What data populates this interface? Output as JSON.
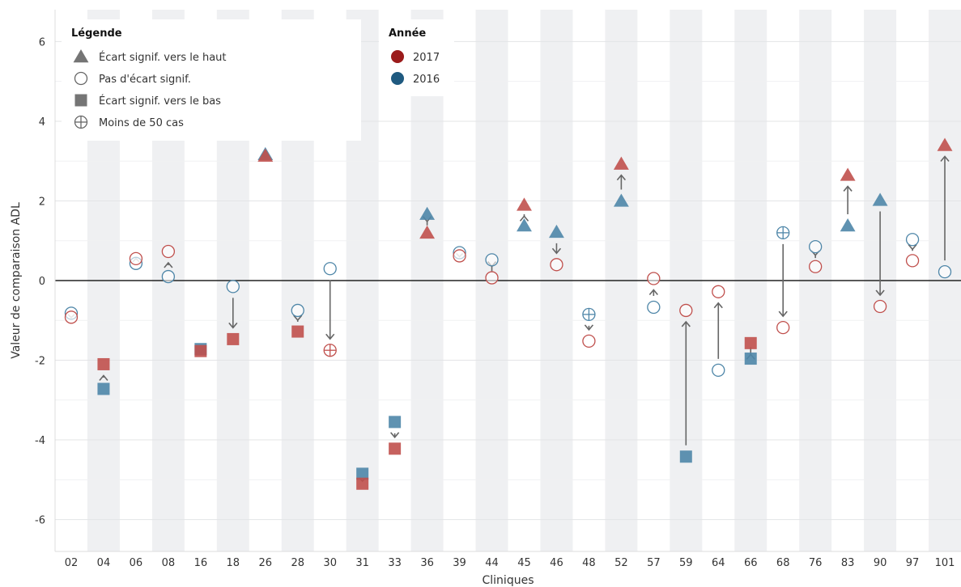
{
  "chart_data": {
    "type": "scatter",
    "xlabel": "Cliniques",
    "ylabel": "Valeur de comparaison ADL",
    "ylim": [
      -6.8,
      6.8
    ],
    "y_ticks": [
      -6,
      -4,
      -2,
      0,
      2,
      4,
      6
    ],
    "y_tick_labels": [
      "-6",
      "-4",
      "-2",
      "0",
      "2",
      "4",
      "6"
    ],
    "grid": "horizontal",
    "alternating_column_bands": true,
    "categories": [
      "02",
      "04",
      "06",
      "08",
      "16",
      "18",
      "26",
      "28",
      "30",
      "31",
      "33",
      "36",
      "39",
      "44",
      "45",
      "46",
      "48",
      "52",
      "57",
      "59",
      "64",
      "66",
      "68",
      "76",
      "83",
      "90",
      "97",
      "101"
    ],
    "series": [
      {
        "name": "2017",
        "color": "#c0504d",
        "values": [
          -0.92,
          -2.1,
          0.55,
          0.73,
          -1.77,
          -1.47,
          3.13,
          -1.28,
          -1.75,
          -5.1,
          -4.22,
          1.2,
          0.62,
          0.07,
          1.9,
          0.4,
          -1.52,
          2.93,
          0.05,
          -0.75,
          -0.28,
          -1.57,
          -1.18,
          0.35,
          2.65,
          -0.65,
          0.5,
          3.4
        ],
        "markers": [
          "open",
          "square",
          "open",
          "open",
          "square",
          "square",
          "triangle",
          "square",
          "plus",
          "square",
          "square",
          "triangle",
          "open",
          "open",
          "triangle",
          "open",
          "open",
          "triangle",
          "open",
          "open",
          "open",
          "square",
          "open",
          "open",
          "triangle",
          "open",
          "open",
          "triangle"
        ]
      },
      {
        "name": "2016",
        "color": "#4e86a8",
        "values": [
          -0.82,
          -2.72,
          0.43,
          0.1,
          -1.72,
          -0.15,
          3.17,
          -0.75,
          0.3,
          -4.85,
          -3.55,
          1.67,
          0.7,
          0.52,
          1.38,
          1.22,
          -0.85,
          2.0,
          -0.67,
          -4.42,
          -2.25,
          -1.96,
          1.2,
          0.85,
          1.38,
          2.02,
          1.03,
          0.22
        ],
        "markers": [
          "open",
          "square",
          "open",
          "open",
          "square",
          "open",
          "triangle",
          "open",
          "open",
          "square",
          "square",
          "triangle",
          "open",
          "open",
          "triangle",
          "triangle",
          "plus",
          "triangle",
          "open",
          "square",
          "open",
          "square",
          "plus",
          "open",
          "triangle",
          "triangle",
          "open",
          "open"
        ]
      }
    ],
    "legends": {
      "shape": {
        "title": "Légende",
        "placement": "top-left",
        "items": [
          {
            "shape": "triangle",
            "label": "Écart signif. vers le haut"
          },
          {
            "shape": "open",
            "label": "Pas d'écart signif."
          },
          {
            "shape": "square",
            "label": "Écart signif. vers le bas"
          },
          {
            "shape": "plus",
            "label": "Moins de 50 cas"
          }
        ]
      },
      "year": {
        "title": "Année",
        "placement": "top-center",
        "items": [
          {
            "label": "2017",
            "color": "#9b1b1b"
          },
          {
            "label": "2016",
            "color": "#1f5a80"
          }
        ]
      }
    },
    "colors": {
      "legend_shape": "#666666",
      "arrow": "#666666",
      "band": "#eff0f2",
      "zero_line": "#222222"
    }
  }
}
